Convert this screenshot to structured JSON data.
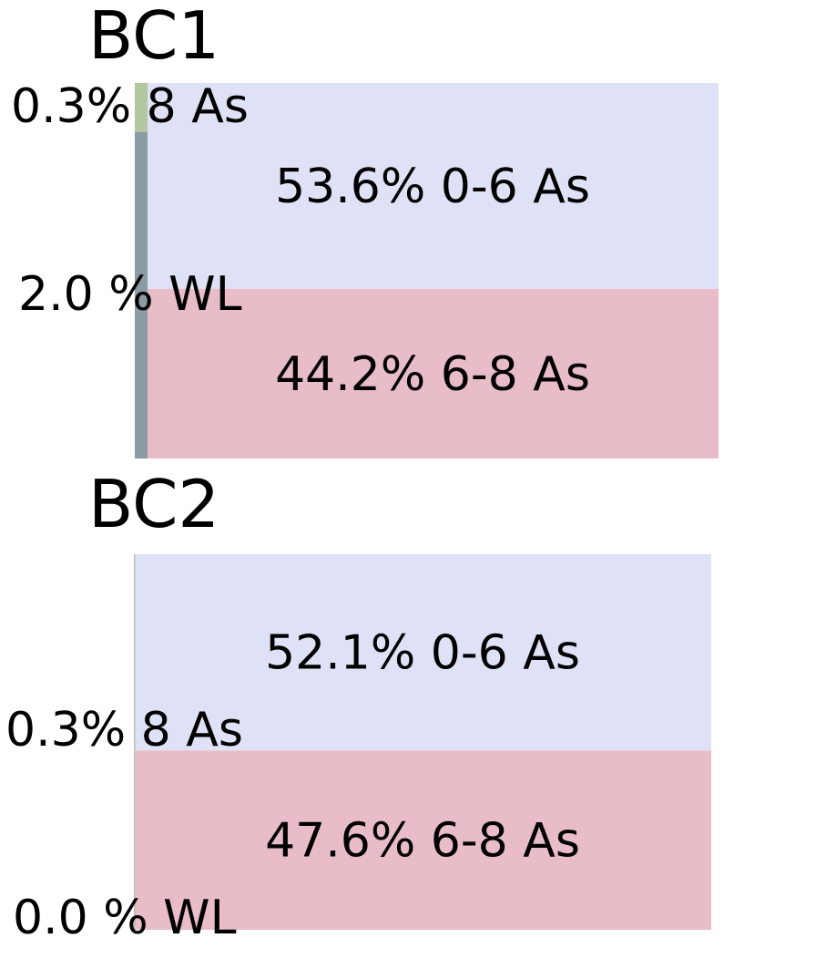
{
  "colors": {
    "low_as": "#dfe2f6",
    "high_as": "#e8bdc8",
    "eight_as": "#b3c6a0",
    "wl": "#8a9ba3",
    "text": "#000000"
  },
  "chart_data": [
    {
      "type": "bar",
      "title": "BC1",
      "main_segments": [
        {
          "name": "0-6 As",
          "value": 53.6,
          "label": "53.6% 0-6 As",
          "color_key": "low_as"
        },
        {
          "name": "6-8 As",
          "value": 44.2,
          "label": "44.2% 6-8 As",
          "color_key": "high_as"
        }
      ],
      "side_segments": [
        {
          "name": "8 As",
          "value": 0.3,
          "label": "0.3% 8 As",
          "color_key": "eight_as"
        },
        {
          "name": "WL",
          "value": 2.0,
          "label": "2.0 % WL",
          "color_key": "wl"
        }
      ]
    },
    {
      "type": "bar",
      "title": "BC2",
      "main_segments": [
        {
          "name": "0-6 As",
          "value": 52.1,
          "label": "52.1% 0-6 As",
          "color_key": "low_as"
        },
        {
          "name": "6-8 As",
          "value": 47.6,
          "label": "47.6% 6-8 As",
          "color_key": "high_as"
        }
      ],
      "side_segments": [
        {
          "name": "8 As",
          "value": 0.3,
          "label": "0.3% 8 As",
          "color_key": "eight_as"
        },
        {
          "name": "WL",
          "value": 0.0,
          "label": "0.0 % WL",
          "color_key": "wl"
        }
      ]
    }
  ]
}
